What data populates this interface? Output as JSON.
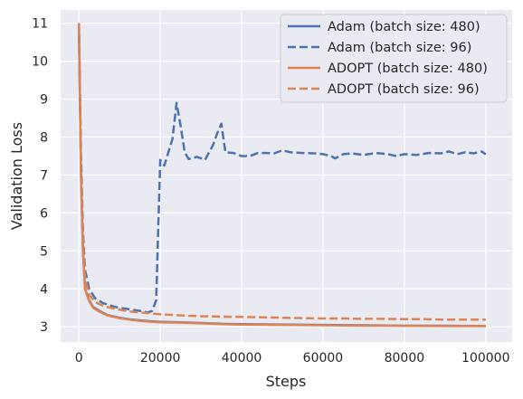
{
  "chart_data": {
    "type": "line",
    "title": "",
    "xlabel": "Steps",
    "ylabel": "Validation Loss",
    "xlim": [
      -4500,
      106500
    ],
    "ylim": [
      2.6,
      11.35
    ],
    "xticks": [
      0,
      20000,
      40000,
      60000,
      80000,
      100000
    ],
    "yticks": [
      3,
      4,
      5,
      6,
      7,
      8,
      9,
      10,
      11
    ],
    "grid": true,
    "legend_position": "top-right",
    "series": [
      {
        "name": "Adam (batch size: 480)",
        "color": "#4c72b0",
        "dash": "solid",
        "x": [
          0,
          500,
          1000,
          1500,
          2500,
          3500,
          5000,
          7000,
          10000,
          13000,
          17000,
          20000,
          25000,
          30000,
          35000,
          40000,
          50000,
          60000,
          70000,
          80000,
          90000,
          100000
        ],
        "y": [
          11.0,
          7.0,
          5.0,
          4.0,
          3.7,
          3.52,
          3.42,
          3.31,
          3.24,
          3.19,
          3.15,
          3.13,
          3.12,
          3.1,
          3.08,
          3.07,
          3.06,
          3.05,
          3.04,
          3.03,
          3.03,
          3.02
        ]
      },
      {
        "name": "Adam (batch size: 96)",
        "color": "#4c72b0",
        "dash": "dashed",
        "x": [
          0,
          500,
          1000,
          1500,
          2500,
          4000,
          6000,
          9000,
          12000,
          15000,
          17000,
          18000,
          19000,
          20000,
          21000,
          22000,
          23000,
          24000,
          25000,
          26000,
          27000,
          29000,
          31000,
          33000,
          34000,
          35000,
          36000,
          38000,
          40000,
          42000,
          44000,
          46000,
          48000,
          50000,
          52000,
          55000,
          58000,
          60000,
          62000,
          63000,
          65000,
          67000,
          70000,
          73000,
          76000,
          78000,
          80000,
          83000,
          86000,
          89000,
          91000,
          93000,
          95000,
          97000,
          99000,
          100000
        ],
        "y": [
          11.0,
          7.5,
          5.5,
          4.5,
          4.0,
          3.75,
          3.62,
          3.52,
          3.47,
          3.42,
          3.38,
          3.42,
          3.7,
          7.4,
          7.25,
          7.6,
          7.95,
          8.9,
          8.3,
          7.6,
          7.42,
          7.48,
          7.4,
          7.8,
          8.1,
          8.35,
          7.6,
          7.58,
          7.5,
          7.5,
          7.58,
          7.58,
          7.57,
          7.65,
          7.6,
          7.58,
          7.57,
          7.55,
          7.5,
          7.44,
          7.55,
          7.57,
          7.53,
          7.58,
          7.55,
          7.5,
          7.55,
          7.53,
          7.58,
          7.57,
          7.62,
          7.55,
          7.6,
          7.57,
          7.62,
          7.55
        ]
      },
      {
        "name": "ADOPT (batch size: 480)",
        "color": "#dd8452",
        "dash": "solid",
        "x": [
          0,
          500,
          1000,
          1500,
          2500,
          3500,
          5000,
          7000,
          10000,
          13000,
          17000,
          20000,
          25000,
          30000,
          35000,
          40000,
          50000,
          60000,
          70000,
          80000,
          90000,
          100000
        ],
        "y": [
          11.0,
          7.0,
          5.0,
          4.0,
          3.68,
          3.5,
          3.4,
          3.3,
          3.23,
          3.18,
          3.14,
          3.12,
          3.11,
          3.09,
          3.07,
          3.06,
          3.05,
          3.04,
          3.03,
          3.03,
          3.02,
          3.02
        ]
      },
      {
        "name": "ADOPT (batch size: 96)",
        "color": "#dd8452",
        "dash": "dashed",
        "x": [
          0,
          500,
          1000,
          1500,
          2500,
          4000,
          6000,
          9000,
          12000,
          15000,
          18000,
          20000,
          25000,
          30000,
          35000,
          40000,
          45000,
          50000,
          55000,
          60000,
          65000,
          70000,
          75000,
          80000,
          85000,
          90000,
          95000,
          100000
        ],
        "y": [
          11.0,
          7.2,
          5.3,
          4.3,
          3.85,
          3.65,
          3.55,
          3.47,
          3.41,
          3.38,
          3.35,
          3.33,
          3.3,
          3.28,
          3.27,
          3.26,
          3.25,
          3.24,
          3.23,
          3.22,
          3.22,
          3.21,
          3.21,
          3.2,
          3.2,
          3.19,
          3.19,
          3.19
        ]
      }
    ]
  }
}
